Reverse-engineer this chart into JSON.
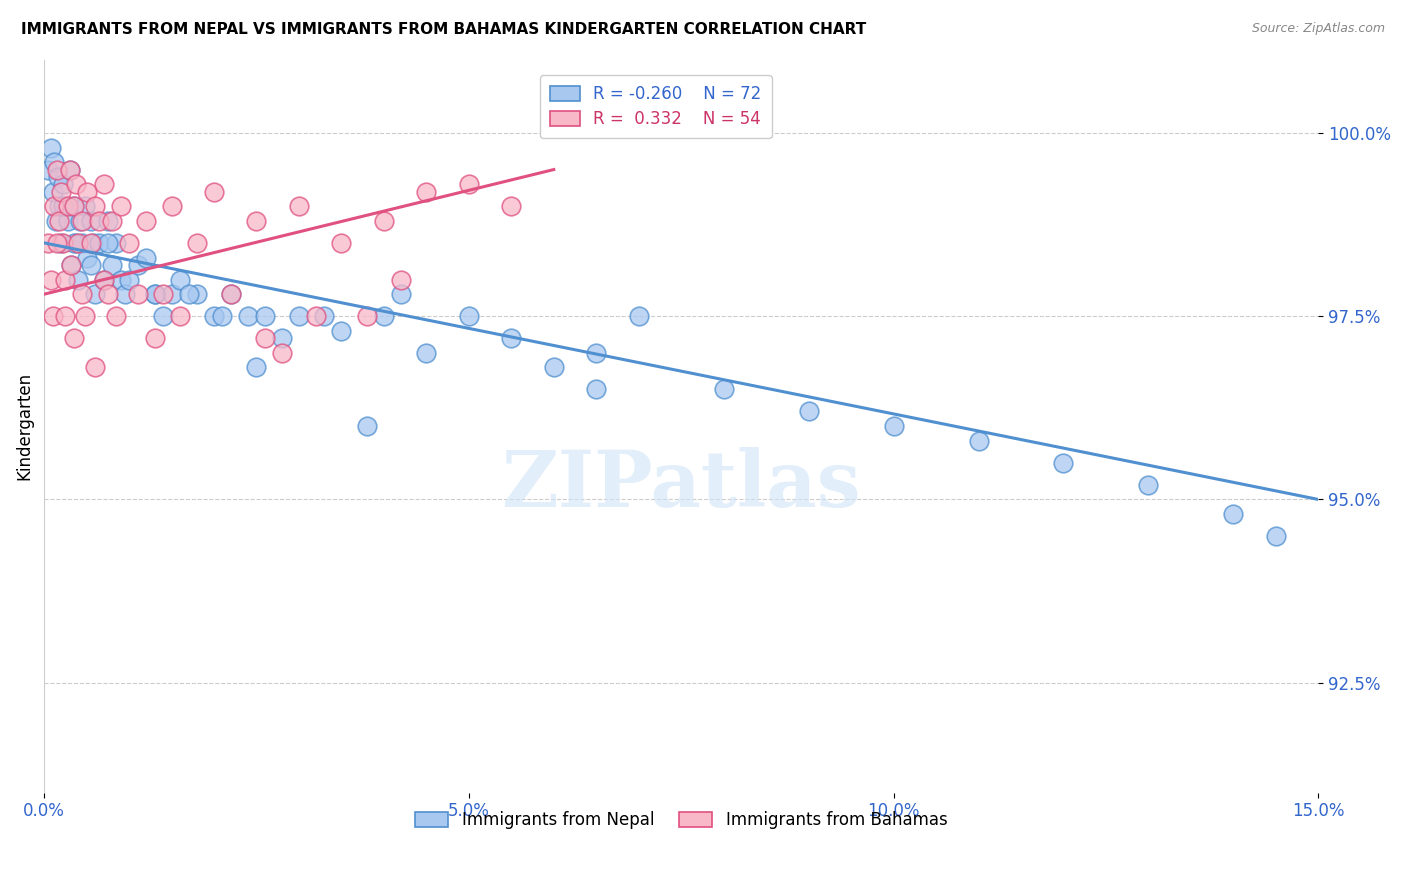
{
  "title": "IMMIGRANTS FROM NEPAL VS IMMIGRANTS FROM BAHAMAS KINDERGARTEN CORRELATION CHART",
  "source": "Source: ZipAtlas.com",
  "ylabel": "Kindergarten",
  "watermark": "ZIPatlas",
  "xlim": [
    0.0,
    15.0
  ],
  "ylim": [
    91.0,
    101.0
  ],
  "yticks": [
    92.5,
    95.0,
    97.5,
    100.0
  ],
  "ytick_labels": [
    "92.5%",
    "95.0%",
    "97.5%",
    "100.0%"
  ],
  "xticks": [
    0.0,
    5.0,
    10.0,
    15.0
  ],
  "xtick_labels": [
    "0.0%",
    "5.0%",
    "10.0%",
    "15.0%"
  ],
  "color_nepal": "#a8c8f0",
  "color_nepal_edge": "#5090d0",
  "color_bahamas": "#f8b8c8",
  "color_bahamas_edge": "#e05080",
  "color_nepal_line": "#5090d0",
  "color_bahamas_line": "#e05080",
  "nepal_x": [
    0.05,
    0.08,
    0.1,
    0.12,
    0.14,
    0.16,
    0.18,
    0.2,
    0.22,
    0.25,
    0.28,
    0.3,
    0.32,
    0.35,
    0.38,
    0.4,
    0.42,
    0.45,
    0.48,
    0.5,
    0.55,
    0.58,
    0.6,
    0.65,
    0.7,
    0.75,
    0.8,
    0.85,
    0.9,
    0.95,
    1.0,
    1.1,
    1.2,
    1.3,
    1.4,
    1.5,
    1.6,
    1.8,
    2.0,
    2.2,
    2.4,
    2.6,
    2.8,
    3.0,
    3.5,
    4.0,
    4.5,
    5.0,
    5.5,
    6.0,
    6.5,
    7.0,
    8.0,
    9.0,
    10.0,
    11.0,
    12.0,
    13.0,
    14.0,
    14.5,
    4.2,
    3.3,
    2.1,
    1.7,
    0.75,
    0.35,
    0.22,
    0.55,
    1.3,
    2.5,
    3.8,
    6.5
  ],
  "nepal_y": [
    99.5,
    99.8,
    99.2,
    99.6,
    98.8,
    99.4,
    99.0,
    98.5,
    99.3,
    99.0,
    98.8,
    99.5,
    98.2,
    99.0,
    98.5,
    98.0,
    98.8,
    98.5,
    99.0,
    98.3,
    98.8,
    98.5,
    97.8,
    98.5,
    98.0,
    98.8,
    98.2,
    98.5,
    98.0,
    97.8,
    98.0,
    98.2,
    98.3,
    97.8,
    97.5,
    97.8,
    98.0,
    97.8,
    97.5,
    97.8,
    97.5,
    97.5,
    97.2,
    97.5,
    97.3,
    97.5,
    97.0,
    97.5,
    97.2,
    96.8,
    97.0,
    97.5,
    96.5,
    96.2,
    96.0,
    95.8,
    95.5,
    95.2,
    94.8,
    94.5,
    97.8,
    97.5,
    97.5,
    97.8,
    98.5,
    98.5,
    99.0,
    98.2,
    97.8,
    96.8,
    96.0,
    96.5
  ],
  "bahamas_x": [
    0.05,
    0.08,
    0.1,
    0.12,
    0.15,
    0.18,
    0.2,
    0.22,
    0.25,
    0.28,
    0.3,
    0.32,
    0.35,
    0.38,
    0.4,
    0.45,
    0.5,
    0.55,
    0.6,
    0.65,
    0.7,
    0.8,
    0.9,
    1.0,
    1.2,
    1.5,
    1.8,
    2.0,
    2.5,
    3.0,
    3.5,
    4.0,
    4.5,
    5.0,
    5.5,
    0.15,
    0.25,
    0.7,
    1.3,
    2.2,
    3.2,
    2.8,
    1.6,
    0.45,
    0.85,
    1.1,
    2.6,
    3.8,
    4.2,
    1.4,
    0.6,
    0.35,
    0.48,
    0.75
  ],
  "bahamas_y": [
    98.5,
    98.0,
    97.5,
    99.0,
    99.5,
    98.8,
    99.2,
    98.5,
    98.0,
    99.0,
    99.5,
    98.2,
    99.0,
    99.3,
    98.5,
    98.8,
    99.2,
    98.5,
    99.0,
    98.8,
    99.3,
    98.8,
    99.0,
    98.5,
    98.8,
    99.0,
    98.5,
    99.2,
    98.8,
    99.0,
    98.5,
    98.8,
    99.2,
    99.3,
    99.0,
    98.5,
    97.5,
    98.0,
    97.2,
    97.8,
    97.5,
    97.0,
    97.5,
    97.8,
    97.5,
    97.8,
    97.2,
    97.5,
    98.0,
    97.8,
    96.8,
    97.2,
    97.5,
    97.8
  ],
  "nepal_trendline_x": [
    0.0,
    15.0
  ],
  "nepal_trendline_y": [
    98.5,
    95.0
  ],
  "bahamas_trendline_x": [
    0.0,
    6.0
  ],
  "bahamas_trendline_y": [
    97.8,
    99.5
  ]
}
